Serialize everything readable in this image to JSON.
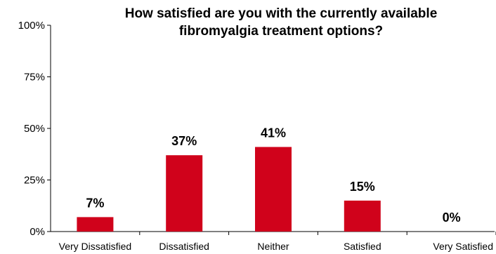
{
  "chart_data": {
    "type": "bar",
    "title": "How satisfied are you with the currently available fibromyalgia treatment options?",
    "title_lines": [
      "How satisfied are you with the currently available",
      "fibromyalgia treatment options?"
    ],
    "categories": [
      "Very Dissatisfied",
      "Dissatisfied",
      "Neither",
      "Satisfied",
      "Very Satisfied"
    ],
    "values": [
      7,
      37,
      41,
      15,
      0
    ],
    "data_labels": [
      "7%",
      "37%",
      "41%",
      "15%",
      "0%"
    ],
    "y_ticks": [
      0,
      25,
      50,
      75,
      100
    ],
    "y_tick_labels": [
      "0%",
      "25%",
      "50%",
      "75%",
      "100%"
    ],
    "ylim": [
      0,
      100
    ],
    "xlabel": "",
    "ylabel": "",
    "grid": false,
    "legend": "none",
    "bar_color": "#d0021b"
  }
}
